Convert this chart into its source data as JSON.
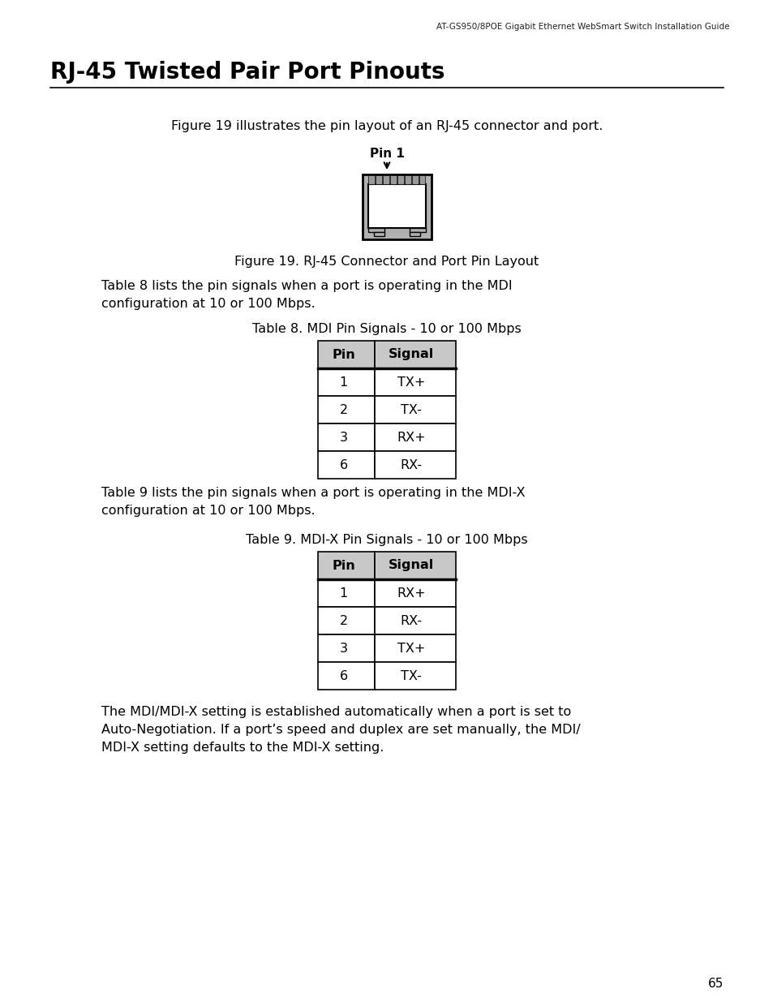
{
  "header_text": "AT-GS950/8POE Gigabit Ethernet WebSmart Switch Installation Guide",
  "page_number": "65",
  "title": "RJ-45 Twisted Pair Port Pinouts",
  "intro_text": "Figure 19 illustrates the pin layout of an RJ-45 connector and port.",
  "pin1_label": "Pin 1",
  "figure_caption": "Figure 19. RJ-45 Connector and Port Pin Layout",
  "table8_title": "Table 8. MDI Pin Signals - 10 or 100 Mbps",
  "table8_desc": "Table 8 lists the pin signals when a port is operating in the MDI\nconfiguration at 10 or 100 Mbps.",
  "table8_headers": [
    "Pin",
    "Signal"
  ],
  "table8_rows": [
    [
      "1",
      "TX+"
    ],
    [
      "2",
      "TX-"
    ],
    [
      "3",
      "RX+"
    ],
    [
      "6",
      "RX-"
    ]
  ],
  "table9_title": "Table 9. MDI-X Pin Signals - 10 or 100 Mbps",
  "table9_desc": "Table 9 lists the pin signals when a port is operating in the MDI-X\nconfiguration at 10 or 100 Mbps.",
  "table9_headers": [
    "Pin",
    "Signal"
  ],
  "table9_rows": [
    [
      "1",
      "RX+"
    ],
    [
      "2",
      "RX-"
    ],
    [
      "3",
      "TX+"
    ],
    [
      "6",
      "TX-"
    ]
  ],
  "footer_text": "The MDI/MDI-X setting is established automatically when a port is set to\nAuto-Negotiation. If a port’s speed and duplex are set manually, the MDI/\nMDI-X setting defaults to the MDI-X setting.",
  "bg_color": "#ffffff",
  "text_color": "#000000",
  "table_header_bg": "#c8c8c8",
  "connector_gray": "#b0b0b0",
  "connector_dark": "#888888"
}
